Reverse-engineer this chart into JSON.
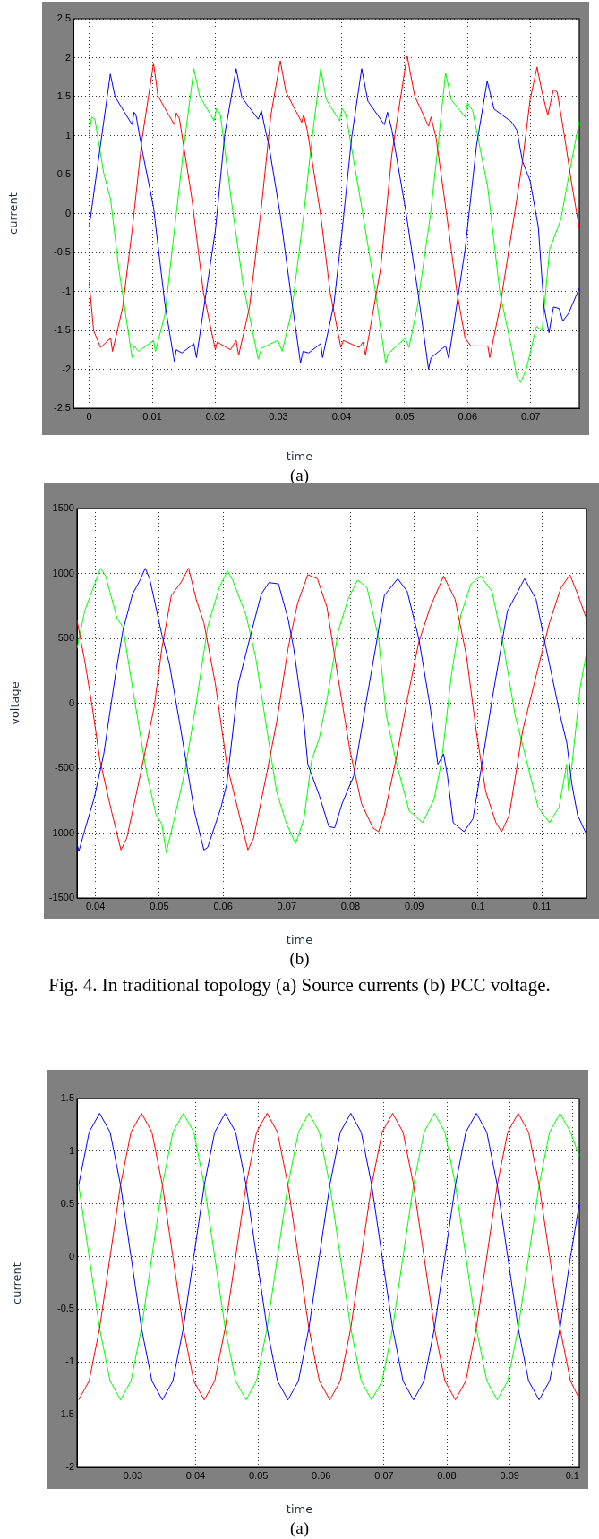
{
  "chart_data": [
    {
      "type": "line",
      "xlabel": "time",
      "ylabel": "current",
      "annotations": [
        "(a)"
      ],
      "xlim": [
        -0.0025,
        0.0777
      ],
      "ylim": [
        -2.5,
        2.5
      ],
      "xticks": [
        0,
        0.01,
        0.02,
        0.03,
        0.04,
        0.05,
        0.06,
        0.07
      ],
      "yticks": [
        -2.5,
        -2,
        -1.5,
        -1,
        -0.5,
        0,
        0.5,
        1,
        1.5,
        2,
        2.5
      ],
      "grid": true,
      "marker": "none",
      "series": [
        {
          "color": "#0000ff",
          "x": [
            0,
            0.00335,
            0.0041,
            0.0068,
            0.0071,
            0.0074,
            0.0085,
            0.0102,
            0.012,
            0.0135,
            0.0138,
            0.0147,
            0.0166,
            0.017,
            0.02,
            0.0215,
            0.0233,
            0.0242,
            0.0268,
            0.0273,
            0.0278,
            0.0285,
            0.0303,
            0.0321,
            0.0335,
            0.0339,
            0.0348,
            0.0367,
            0.037,
            0.0388,
            0.0401,
            0.0416,
            0.0432,
            0.0442,
            0.0468,
            0.0473,
            0.048,
            0.0502,
            0.0523,
            0.0538,
            0.0542,
            0.0565,
            0.057,
            0.0596,
            0.0614,
            0.0631,
            0.0642,
            0.0669,
            0.0678,
            0.0687,
            0.0699,
            0.0712,
            0.0721,
            0.0729,
            0.0736,
            0.0745,
            0.0751,
            0.076,
            0.0777
          ],
          "values": [
            -0.17,
            1.79,
            1.5,
            1.14,
            1.3,
            1.27,
            0.77,
            0.08,
            -1.16,
            -1.9,
            -1.75,
            -1.79,
            -1.67,
            -1.85,
            -0.22,
            1.02,
            1.86,
            1.49,
            1.21,
            1.32,
            1.12,
            0.87,
            -0.02,
            -1.11,
            -1.92,
            -1.77,
            -1.79,
            -1.67,
            -1.85,
            -1.16,
            -0.22,
            0.97,
            1.86,
            1.44,
            1.14,
            1.3,
            1.07,
            0.03,
            -1.11,
            -2.0,
            -1.85,
            -1.7,
            -1.86,
            -0.46,
            0.87,
            1.7,
            1.34,
            1.18,
            1.07,
            0.67,
            0.42,
            -0.17,
            -1.2,
            -1.53,
            -1.2,
            -1.22,
            -1.38,
            -1.28,
            -0.96
          ]
        },
        {
          "color": "#ff0000",
          "x": [
            0,
            0.0007,
            0.0018,
            0.0034,
            0.0037,
            0.0053,
            0.0068,
            0.0084,
            0.0102,
            0.0109,
            0.0135,
            0.0138,
            0.0143,
            0.0163,
            0.0181,
            0.02,
            0.0203,
            0.0224,
            0.0233,
            0.0237,
            0.0254,
            0.0273,
            0.0288,
            0.0303,
            0.0312,
            0.0337,
            0.034,
            0.0346,
            0.0367,
            0.0382,
            0.0399,
            0.0403,
            0.0428,
            0.0434,
            0.0438,
            0.0462,
            0.048,
            0.0504,
            0.0516,
            0.0538,
            0.0542,
            0.055,
            0.0566,
            0.0583,
            0.0596,
            0.0605,
            0.0632,
            0.0635,
            0.0651,
            0.0675,
            0.0687,
            0.0699,
            0.071,
            0.0718,
            0.0727,
            0.0736,
            0.0742,
            0.0753,
            0.0765,
            0.0777
          ],
          "values": [
            -0.88,
            -1.5,
            -1.72,
            -1.6,
            -1.77,
            -1.21,
            -0.22,
            0.97,
            1.93,
            1.51,
            1.14,
            1.29,
            1.22,
            0.18,
            -1.01,
            -1.75,
            -1.65,
            -1.75,
            -1.63,
            -1.82,
            -1.21,
            0.08,
            1.26,
            1.96,
            1.56,
            1.17,
            1.27,
            1.06,
            -0.02,
            -1.01,
            -1.72,
            -1.63,
            -1.72,
            -1.65,
            -1.82,
            -0.71,
            0.77,
            2.03,
            1.51,
            1.12,
            1.24,
            0.97,
            0.03,
            -1.01,
            -1.6,
            -1.7,
            -1.7,
            -1.85,
            -1.21,
            0.03,
            0.67,
            1.46,
            1.88,
            1.56,
            1.26,
            1.59,
            1.56,
            1.02,
            0.38,
            -0.19
          ]
        },
        {
          "color": "#00ff00",
          "x": [
            0,
            0.0004,
            0.0009,
            0.0023,
            0.0034,
            0.0047,
            0.0068,
            0.0071,
            0.0078,
            0.0102,
            0.0105,
            0.012,
            0.0135,
            0.0151,
            0.0166,
            0.0175,
            0.0198,
            0.0202,
            0.0208,
            0.0226,
            0.0244,
            0.0268,
            0.0273,
            0.0299,
            0.0306,
            0.0321,
            0.034,
            0.0352,
            0.0367,
            0.0376,
            0.0397,
            0.0401,
            0.0407,
            0.0431,
            0.0452,
            0.047,
            0.0474,
            0.0501,
            0.0507,
            0.052,
            0.0541,
            0.0553,
            0.0565,
            0.0574,
            0.0596,
            0.06,
            0.0608,
            0.0632,
            0.0651,
            0.0669,
            0.0678,
            0.0684,
            0.0693,
            0.0709,
            0.0718,
            0.073,
            0.0748,
            0.076,
            0.0777
          ],
          "values": [
            1.04,
            1.24,
            1.21,
            0.52,
            0.18,
            -0.71,
            -1.85,
            -1.7,
            -1.77,
            -1.63,
            -1.77,
            -1.3,
            -0.22,
            0.92,
            1.86,
            1.51,
            1.19,
            1.35,
            1.27,
            0.13,
            -0.91,
            -1.87,
            -1.73,
            -1.63,
            -1.77,
            -1.26,
            -0.02,
            0.87,
            1.86,
            1.46,
            1.19,
            1.35,
            1.27,
            0.13,
            -0.91,
            -1.92,
            -1.8,
            -1.6,
            -1.72,
            -1.21,
            -0.02,
            0.87,
            1.81,
            1.46,
            1.24,
            1.42,
            1.32,
            0.33,
            -1.01,
            -1.7,
            -2.1,
            -2.17,
            -2.0,
            -1.45,
            -1.5,
            -0.46,
            -0.07,
            0.47,
            1.19
          ]
        }
      ]
    },
    {
      "type": "line",
      "xlabel": "time",
      "ylabel": "voltage",
      "annotations": [
        "(b)",
        "Fig. 4. In traditional topology  (a) Source currents (b) PCC voltage."
      ],
      "xlim": [
        0.0371,
        0.117
      ],
      "ylim": [
        -1500,
        1500
      ],
      "xticks": [
        0.04,
        0.05,
        0.06,
        0.07,
        0.08,
        0.09,
        0.1,
        0.11
      ],
      "yticks": [
        -1500,
        -1000,
        -500,
        0,
        500,
        1000,
        1500
      ],
      "grid": true,
      "marker": "none",
      "series": [
        {
          "color": "#0000ff",
          "x": [
            0.0371,
            0.0374,
            0.0383,
            0.0398,
            0.0413,
            0.0431,
            0.0443,
            0.0458,
            0.047,
            0.0478,
            0.0485,
            0.0504,
            0.0516,
            0.0534,
            0.0555,
            0.057,
            0.0576,
            0.0597,
            0.0606,
            0.0624,
            0.0642,
            0.066,
            0.0672,
            0.0687,
            0.0702,
            0.0711,
            0.0727,
            0.0733,
            0.0751,
            0.0766,
            0.0775,
            0.0787,
            0.0805,
            0.0823,
            0.0838,
            0.0853,
            0.0874,
            0.0889,
            0.0907,
            0.0925,
            0.0937,
            0.0946,
            0.0952,
            0.0961,
            0.0978,
            0.0992,
            0.1007,
            0.1022,
            0.1046,
            0.1073,
            0.1091,
            0.1106,
            0.113,
            0.1139,
            0.1147,
            0.1156,
            0.117
          ],
          "values": [
            -1080,
            -1140,
            -980,
            -730,
            -390,
            210,
            560,
            840,
            950,
            1040,
            960,
            530,
            300,
            -210,
            -830,
            -1130,
            -1110,
            -800,
            -620,
            150,
            500,
            840,
            930,
            920,
            650,
            420,
            -150,
            -470,
            -710,
            -950,
            -960,
            -770,
            -560,
            -30,
            390,
            830,
            960,
            860,
            500,
            -30,
            -470,
            -390,
            -560,
            -920,
            -990,
            -890,
            -440,
            30,
            710,
            960,
            800,
            440,
            -120,
            -300,
            -620,
            -860,
            -1010
          ]
        },
        {
          "color": "#ff0000",
          "x": [
            0.0371,
            0.0383,
            0.0395,
            0.0407,
            0.0425,
            0.044,
            0.0449,
            0.047,
            0.0492,
            0.0504,
            0.0519,
            0.0534,
            0.0546,
            0.0558,
            0.057,
            0.0588,
            0.0606,
            0.0624,
            0.0639,
            0.0648,
            0.0669,
            0.0684,
            0.0702,
            0.0717,
            0.0733,
            0.0748,
            0.0763,
            0.0781,
            0.0799,
            0.0817,
            0.0835,
            0.0844,
            0.0853,
            0.0871,
            0.0889,
            0.0907,
            0.0925,
            0.0946,
            0.0964,
            0.0982,
            0.0997,
            0.1012,
            0.1028,
            0.1037,
            0.1049,
            0.107,
            0.1094,
            0.1112,
            0.113,
            0.1144,
            0.1157,
            0.117
          ],
          "values": [
            640,
            330,
            -30,
            -440,
            -830,
            -1130,
            -1040,
            -560,
            -30,
            420,
            830,
            930,
            1040,
            800,
            620,
            150,
            -470,
            -830,
            -1130,
            -1040,
            -530,
            -150,
            420,
            770,
            990,
            960,
            740,
            180,
            -360,
            -770,
            -960,
            -990,
            -860,
            -440,
            30,
            470,
            740,
            980,
            800,
            360,
            -210,
            -680,
            -920,
            -990,
            -860,
            -210,
            270,
            620,
            890,
            990,
            830,
            650
          ]
        },
        {
          "color": "#00ff00",
          "x": [
            0.0371,
            0.0383,
            0.0395,
            0.0408,
            0.0416,
            0.0434,
            0.0443,
            0.0458,
            0.048,
            0.0495,
            0.0504,
            0.0511,
            0.0525,
            0.054,
            0.0558,
            0.0576,
            0.0594,
            0.0607,
            0.0615,
            0.0636,
            0.0651,
            0.0669,
            0.0684,
            0.0699,
            0.0708,
            0.0714,
            0.0727,
            0.0739,
            0.0751,
            0.0763,
            0.0781,
            0.0796,
            0.0811,
            0.0826,
            0.0844,
            0.0856,
            0.0871,
            0.0892,
            0.0913,
            0.0931,
            0.0943,
            0.0958,
            0.0973,
            0.0989,
            0.1004,
            0.1022,
            0.104,
            0.1058,
            0.1076,
            0.1094,
            0.1112,
            0.1127,
            0.1139,
            0.1142,
            0.1148,
            0.116,
            0.117
          ],
          "values": [
            420,
            710,
            870,
            1040,
            980,
            650,
            590,
            120,
            -530,
            -860,
            -930,
            -1150,
            -860,
            -530,
            0,
            590,
            890,
            1020,
            950,
            680,
            360,
            -210,
            -680,
            -920,
            -1020,
            -1080,
            -890,
            -440,
            -270,
            30,
            560,
            800,
            950,
            890,
            500,
            -90,
            -440,
            -830,
            -920,
            -740,
            -440,
            210,
            680,
            920,
            980,
            860,
            440,
            -90,
            -440,
            -800,
            -920,
            -800,
            -470,
            -680,
            -440,
            120,
            390
          ]
        }
      ]
    },
    {
      "type": "line",
      "xlabel": "time",
      "ylabel": "current",
      "annotations": [
        "(a)"
      ],
      "xlim": [
        0.0211,
        0.1011
      ],
      "ylim": [
        -2,
        1.5
      ],
      "xticks": [
        0.03,
        0.04,
        0.05,
        0.06,
        0.07,
        0.08,
        0.09,
        0.1
      ],
      "yticks": [
        -2,
        -1.5,
        -1,
        -0.5,
        0,
        0.5,
        1,
        1.5
      ],
      "grid": true,
      "marker": "none",
      "x": [
        0.02137,
        0.02303,
        0.0247,
        0.02637,
        0.02803,
        0.0297,
        0.03137,
        0.03303,
        0.0347,
        0.03637,
        0.03803,
        0.0397,
        0.04137,
        0.04303,
        0.0447,
        0.04637,
        0.04803,
        0.0497,
        0.05137,
        0.05303,
        0.0547,
        0.05637,
        0.05803,
        0.0597,
        0.06137,
        0.06303,
        0.0647,
        0.06637,
        0.06803,
        0.0697,
        0.07137,
        0.07303,
        0.0747,
        0.07637,
        0.07803,
        0.0797,
        0.08137,
        0.08303,
        0.0847,
        0.08637,
        0.08803,
        0.0897,
        0.09137,
        0.09303,
        0.0947,
        0.09637,
        0.09803,
        0.0997,
        0.1011
      ],
      "series": [
        {
          "color": "#0000ff",
          "values": [
            0.68,
            1.18,
            1.36,
            1.18,
            0.68,
            0,
            -0.68,
            -1.18,
            -1.36,
            -1.18,
            -0.68,
            0,
            0.68,
            1.18,
            1.36,
            1.18,
            0.68,
            0,
            -0.68,
            -1.18,
            -1.36,
            -1.18,
            -0.68,
            0,
            0.68,
            1.18,
            1.36,
            1.18,
            0.68,
            0,
            -0.68,
            -1.18,
            -1.36,
            -1.18,
            -0.68,
            0,
            0.68,
            1.18,
            1.36,
            1.18,
            0.68,
            0,
            -0.68,
            -1.18,
            -1.36,
            -1.18,
            -0.68,
            0,
            0.5
          ]
        },
        {
          "color": "#ff0000",
          "values": [
            -1.36,
            -1.18,
            -0.68,
            0,
            0.68,
            1.18,
            1.36,
            1.18,
            0.68,
            0,
            -0.68,
            -1.18,
            -1.36,
            -1.18,
            -0.68,
            0,
            0.68,
            1.18,
            1.36,
            1.18,
            0.68,
            0,
            -0.68,
            -1.18,
            -1.36,
            -1.18,
            -0.68,
            0,
            0.68,
            1.18,
            1.36,
            1.18,
            0.68,
            0,
            -0.68,
            -1.18,
            -1.36,
            -1.18,
            -0.68,
            0,
            0.68,
            1.18,
            1.36,
            1.18,
            0.68,
            0,
            -0.68,
            -1.18,
            -1.35
          ]
        },
        {
          "color": "#00ff00",
          "values": [
            0.68,
            0,
            -0.68,
            -1.18,
            -1.36,
            -1.18,
            -0.68,
            0,
            0.68,
            1.18,
            1.36,
            1.18,
            0.68,
            0,
            -0.68,
            -1.18,
            -1.36,
            -1.18,
            -0.68,
            0,
            0.68,
            1.18,
            1.36,
            1.18,
            0.68,
            0,
            -0.68,
            -1.18,
            -1.36,
            -1.18,
            -0.68,
            0,
            0.68,
            1.18,
            1.36,
            1.18,
            0.68,
            0,
            -0.68,
            -1.18,
            -1.36,
            -1.18,
            -0.68,
            0,
            0.68,
            1.18,
            1.36,
            1.18,
            0.95
          ]
        }
      ]
    }
  ]
}
